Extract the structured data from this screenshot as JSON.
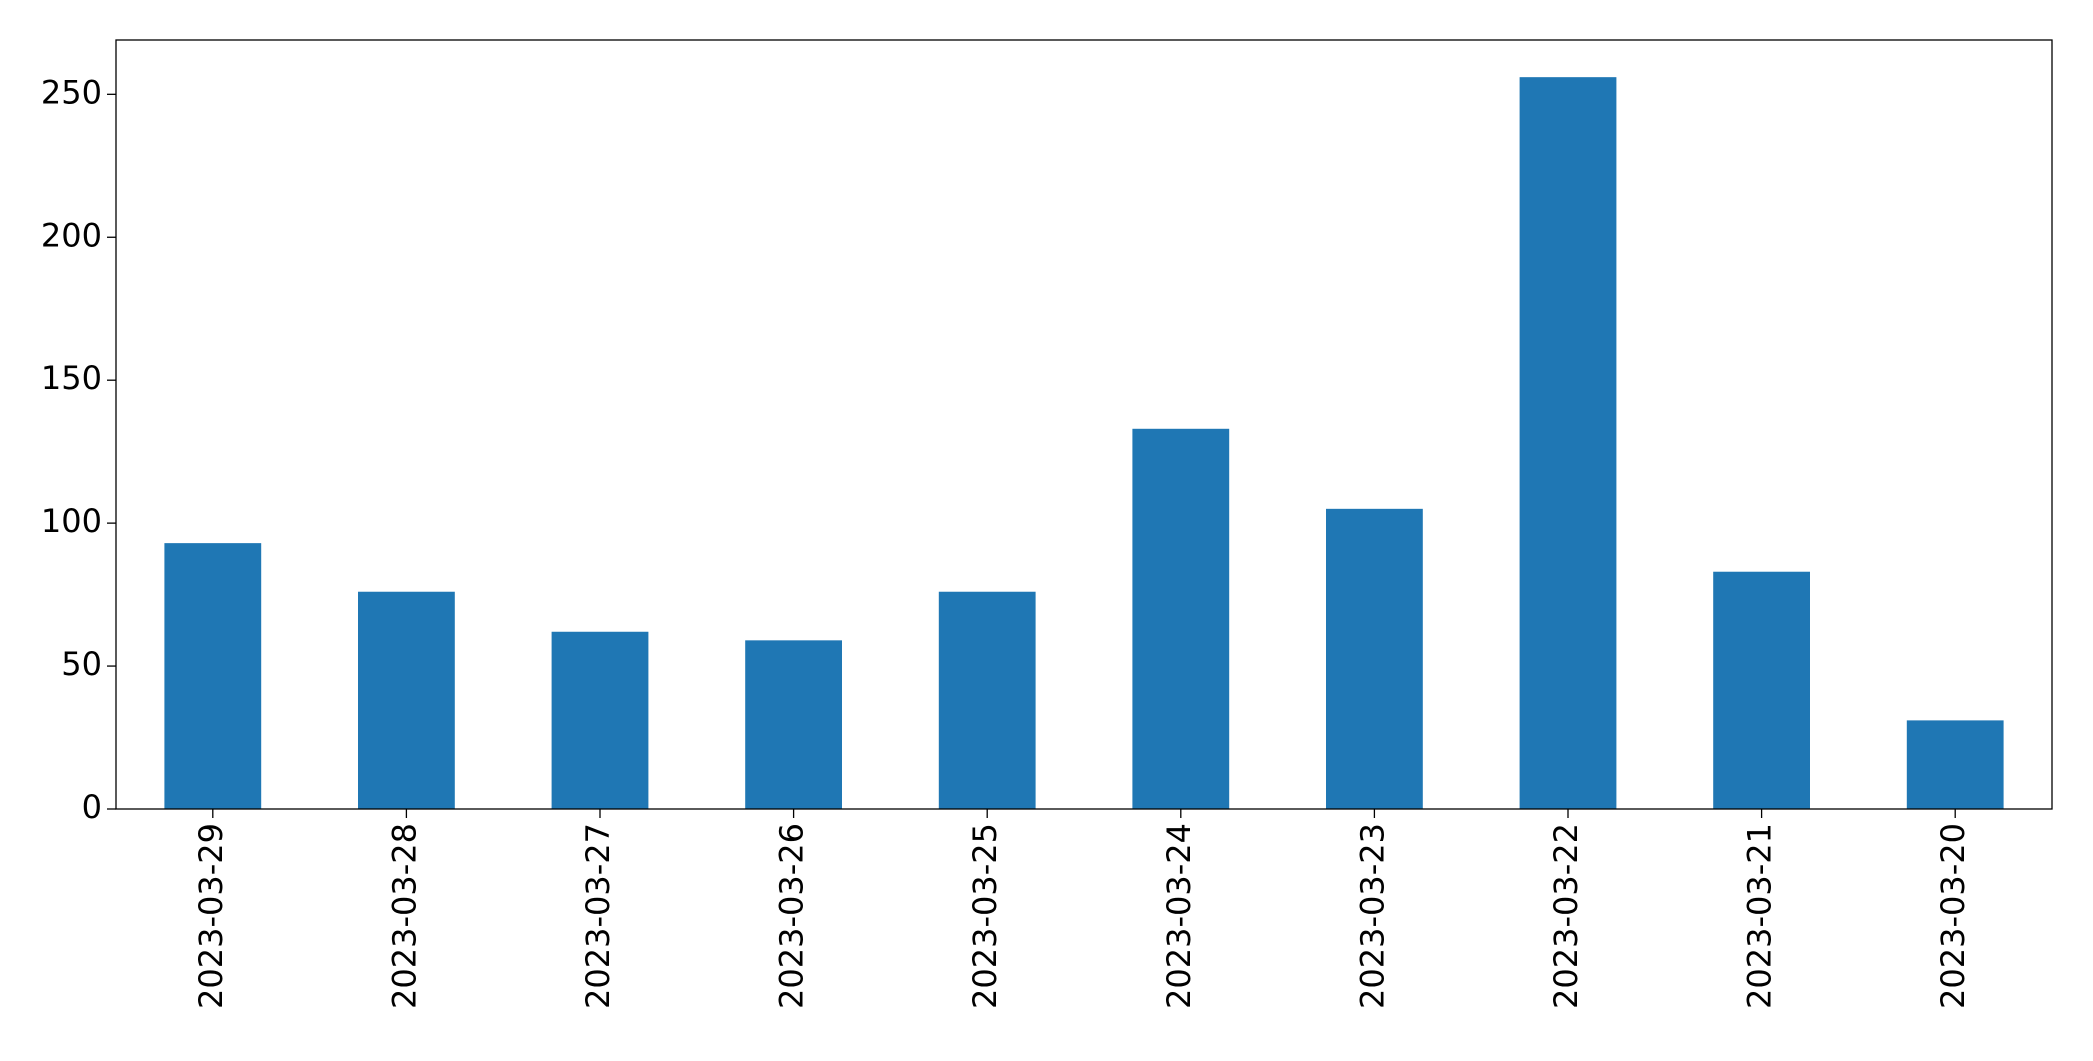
{
  "chart_data": {
    "type": "bar",
    "categories": [
      "2023-03-29",
      "2023-03-28",
      "2023-03-27",
      "2023-03-26",
      "2023-03-25",
      "2023-03-24",
      "2023-03-23",
      "2023-03-22",
      "2023-03-21",
      "2023-03-20"
    ],
    "values": [
      93,
      76,
      62,
      59,
      76,
      133,
      105,
      256,
      83,
      31
    ],
    "color": "#1f77b4",
    "ylim": [
      0,
      269
    ],
    "yticks": [
      0,
      50,
      100,
      150,
      200,
      250
    ],
    "grid": false
  }
}
